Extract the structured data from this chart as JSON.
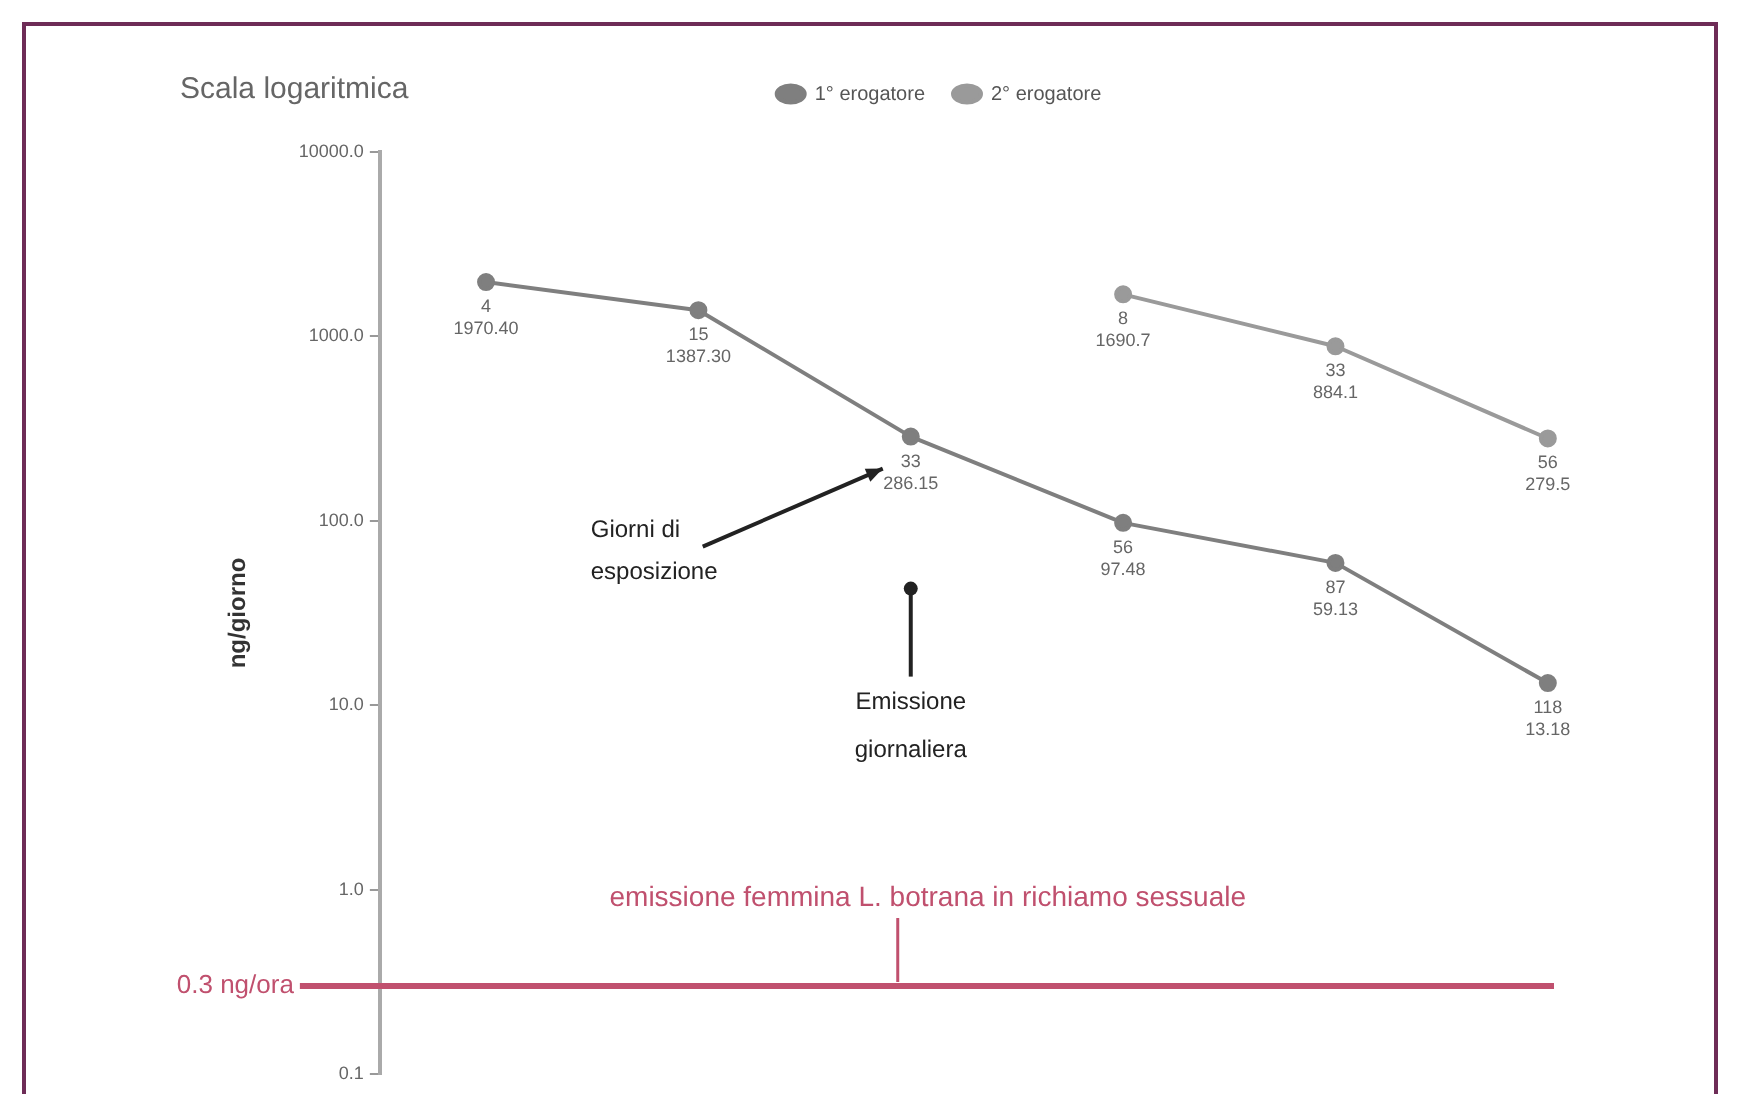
{
  "chart_data": {
    "type": "line",
    "title": "Scala logaritmica",
    "ylabel": "ng/giorno",
    "categories": [
      null,
      null,
      null,
      null,
      null,
      null
    ],
    "series": [
      {
        "name": "1° erogatore",
        "color": "#7f7f7f",
        "values": [
          1970.4,
          1387.3,
          286.15,
          97.48,
          59.13,
          13.18
        ],
        "value_labels": [
          "1970.40",
          "1387.30",
          "286.15",
          "97.48",
          "59.13",
          "13.18"
        ]
      },
      {
        "name": "2° erogatore",
        "color": "#9a9a9a",
        "values": [
          null,
          null,
          null,
          1690.7,
          884.1,
          279.5
        ],
        "value_labels": [
          null,
          null,
          null,
          "1690.7",
          "884.1",
          "279.5"
        ]
      }
    ],
    "ylim": [
      0.1,
      10000
    ],
    "yticks": [
      0.1,
      {
        "value": 1,
        "label": "1.0"
      },
      {
        "value": 10,
        "label": "10.0"
      },
      {
        "value": 100,
        "label": "100.0"
      },
      {
        "value": 1000,
        "label": "1000.0"
      },
      {
        "value": 10000,
        "label": "10000.0"
      }
    ],
    "log": true,
    "grid": false,
    "legend": "top",
    "tick_labels": "y",
    "marker": "circle",
    "line_style": "solid",
    "ref_lines": [
      {
        "axis": "y",
        "value": 0.3,
        "label": "0.3 ng/ora",
        "color": "#c0506e"
      }
    ],
    "annotations": [
      "Giorni di\nesposizione",
      "Emissione\ngiornaliera",
      {
        "text": "emissione femmina L. botrana in richiamo sessuale",
        "y": 0.3
      },
      {
        "text": "4",
        "y": 1970.4
      },
      {
        "text": "15",
        "y": 1387.3
      },
      {
        "text": "33",
        "y": 286.15
      },
      {
        "text": "56",
        "y": 97.48
      },
      {
        "text": "87",
        "y": 59.13
      },
      {
        "text": "118",
        "y": 13.18
      },
      {
        "text": "8",
        "y": 1690.7
      },
      {
        "text": "33",
        "y": 884.1
      },
      {
        "text": "56",
        "y": 279.5
      }
    ]
  }
}
